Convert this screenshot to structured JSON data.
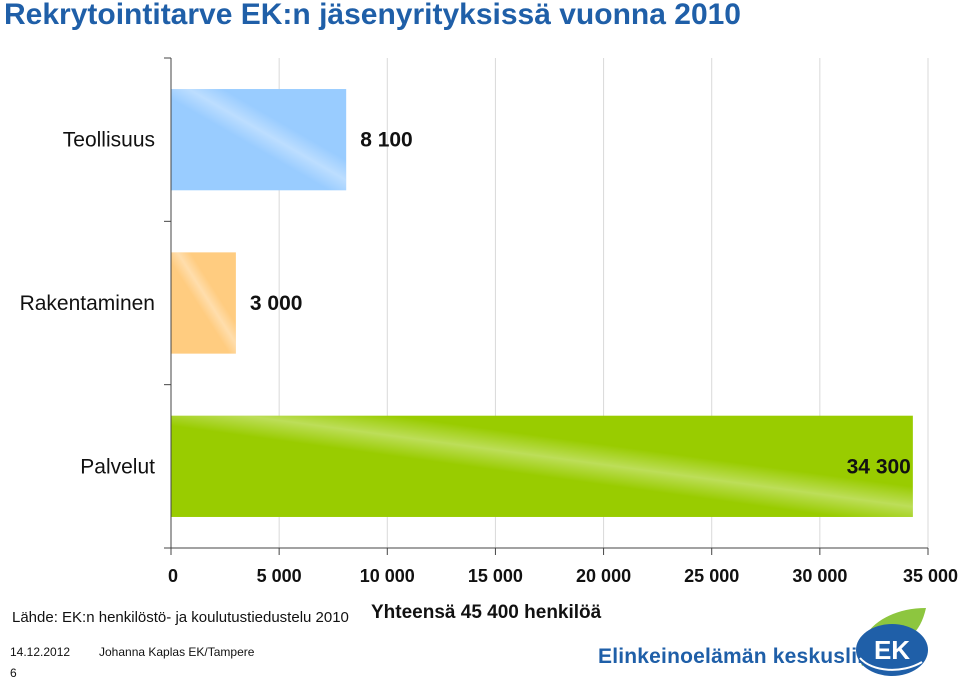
{
  "title": "Rekrytointitarve EK:n jäsenyrityksissä vuonna 2010",
  "chart_data": {
    "type": "bar",
    "orientation": "horizontal",
    "categories": [
      "Teollisuus",
      "Rakentaminen",
      "Palvelut"
    ],
    "values": [
      8100,
      3000,
      34300
    ],
    "value_labels": [
      "8 100",
      "3 000",
      "34 300"
    ],
    "colors": [
      "#99ccff",
      "#ffcc80",
      "#99cc00"
    ],
    "xlim": [
      0,
      35000
    ],
    "x_ticks": [
      0,
      5000,
      10000,
      15000,
      20000,
      25000,
      30000,
      35000
    ],
    "x_tick_labels": [
      "0",
      "5 000",
      "10 000",
      "15 000",
      "20 000",
      "25 000",
      "30 000",
      "35 000"
    ],
    "grid": "vertical",
    "xlabel": "",
    "ylabel": ""
  },
  "footer": {
    "source": "Lähde: EK:n henkilöstö- ja koulutustiedustelu 2010",
    "total": "Yhteensä 45 400 henkilöä",
    "date": "14.12.2012",
    "author": "Johanna Kaplas EK/Tampere",
    "page_number": "6",
    "brand": "Elinkeinoelämän keskusliitto",
    "logo_text": "EK"
  }
}
